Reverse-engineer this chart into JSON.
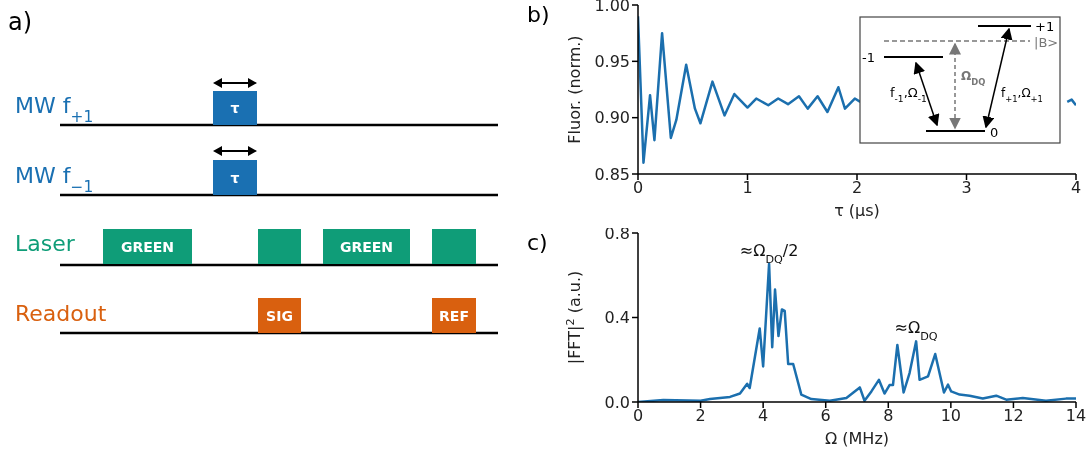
{
  "chart_data": [
    {
      "type": "other",
      "title": "a)",
      "annotations": [
        "MW f$_{+1}$",
        "τ",
        "MW f$_{−1}$",
        "τ",
        "Laser",
        "GREEN",
        "GREEN",
        "Readout",
        "SIG",
        "REF"
      ]
    },
    {
      "type": "line",
      "title": "b)",
      "xlabel": "τ (μs)",
      "ylabel": "Fluor. (norm.)",
      "xlim": [
        0,
        4
      ],
      "xticks": [
        0,
        1,
        2,
        3,
        4
      ],
      "ylim": [
        0.85,
        1.0
      ],
      "yticks": [
        0.85,
        {
          "value": 0.9,
          "label": "0.90"
        },
        0.95,
        {
          "value": 1.0,
          "label": "1.00"
        }
      ],
      "marker": "none",
      "x": [
        0,
        0.05,
        0.11,
        0.15,
        0.22,
        0.3,
        0.35,
        0.44,
        0.52,
        0.57,
        0.68,
        0.79,
        0.88,
        1.0,
        1.08,
        1.19,
        1.28,
        1.37,
        1.47,
        1.55,
        1.64,
        1.73,
        1.83,
        1.89,
        1.98,
        2.03,
        2.06,
        3.89,
        3.92,
        3.96,
        4.0
      ],
      "series": [
        {
          "color": "#1b6fae",
          "values": [
            0.99,
            0.86,
            0.92,
            0.88,
            0.975,
            0.882,
            0.898,
            0.947,
            0.908,
            0.895,
            0.932,
            0.902,
            0.921,
            0.909,
            0.917,
            0.911,
            0.917,
            0.912,
            0.919,
            0.908,
            0.919,
            0.905,
            0.927,
            0.908,
            0.917,
            0.914,
            null,
            null,
            0.914,
            0.916,
            0.911
          ]
        }
      ],
      "annotations": [
        "+1",
        "|B>",
        "-1",
        "Ω$_{DQ}$",
        "f$_{-1}$,Ω$_{-1}$",
        "f$_{+1}$,Ω$_{+1}$",
        "0"
      ]
    },
    {
      "type": "line",
      "title": "c)",
      "xlabel": "Ω (MHz)",
      "ylabel": "|FFT|$^{2}$ (a.u.)",
      "xlim": [
        0,
        14
      ],
      "xticks": [
        0,
        2,
        4,
        6,
        8,
        10,
        12,
        14
      ],
      "ylim": [
        0,
        0.8
      ],
      "yticks": [
        {
          "value": 0,
          "label": "0.0"
        },
        0.4,
        0.8
      ],
      "marker": "none",
      "x": [
        0,
        0.81,
        2,
        2.3,
        2.94,
        3.26,
        3.49,
        3.57,
        3.89,
        4.0,
        4.19,
        4.29,
        4.38,
        4.49,
        4.6,
        4.69,
        4.8,
        4.96,
        5.22,
        5.54,
        6.13,
        6.66,
        7.09,
        7.24,
        7.46,
        7.7,
        7.88,
        8.04,
        8.15,
        8.29,
        8.49,
        8.68,
        8.89,
        9.0,
        9.27,
        9.5,
        9.78,
        9.91,
        10.01,
        10.28,
        10.6,
        11.02,
        11.45,
        11.77,
        12.3,
        13.04,
        13.68,
        14
      ],
      "series": [
        {
          "color": "#1b6fae",
          "values": [
            0,
            0.01,
            0.006,
            0.014,
            0.024,
            0.04,
            0.086,
            0.066,
            0.348,
            0.168,
            0.654,
            0.259,
            0.532,
            0.312,
            0.438,
            0.431,
            0.18,
            0.18,
            0.035,
            0.014,
            0.006,
            0.019,
            0.069,
            0.006,
            0.05,
            0.105,
            0.04,
            0.08,
            0.08,
            0.27,
            0.045,
            0.137,
            0.287,
            0.105,
            0.121,
            0.227,
            0.045,
            0.082,
            0.05,
            0.035,
            0.03,
            0.017,
            0.03,
            0.011,
            0.019,
            0.006,
            0.016,
            0.016
          ]
        }
      ],
      "annotations": [
        {
          "text": "≈Ω$_{DQ}$/2",
          "x": 4.19,
          "y": 0.654
        },
        {
          "text": "≈Ω$_{DQ}$",
          "x": 8.89,
          "y": 0.287
        }
      ]
    }
  ]
}
